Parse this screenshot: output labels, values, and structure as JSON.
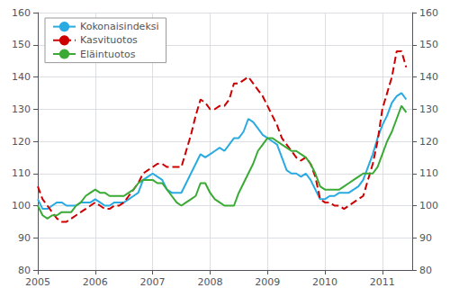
{
  "chart_data": {
    "type": "line",
    "x": [
      2005,
      2005.0833333333333,
      2005.1666666666667,
      2005.25,
      2005.3333333333333,
      2005.4166666666667,
      2005.5,
      2005.5833333333333,
      2005.6666666666667,
      2005.75,
      2005.8333333333333,
      2005.9166666666667,
      2006,
      2006.0833333333333,
      2006.1666666666667,
      2006.25,
      2006.3333333333333,
      2006.4166666666667,
      2006.5,
      2006.5833333333333,
      2006.6666666666667,
      2006.75,
      2006.8333333333333,
      2006.9166666666667,
      2007,
      2007.0833333333333,
      2007.1666666666667,
      2007.25,
      2007.3333333333333,
      2007.4166666666667,
      2007.5,
      2007.5833333333333,
      2007.6666666666667,
      2007.75,
      2007.8333333333333,
      2007.9166666666667,
      2008,
      2008.0833333333333,
      2008.1666666666667,
      2008.25,
      2008.3333333333333,
      2008.4166666666667,
      2008.5,
      2008.5833333333333,
      2008.6666666666667,
      2008.75,
      2008.8333333333333,
      2008.9166666666667,
      2009,
      2009.0833333333333,
      2009.1666666666667,
      2009.25,
      2009.3333333333333,
      2009.4166666666667,
      2009.5,
      2009.5833333333333,
      2009.6666666666667,
      2009.75,
      2009.8333333333333,
      2009.9166666666667,
      2010,
      2010.0833333333333,
      2010.1666666666667,
      2010.25,
      2010.3333333333333,
      2010.4166666666667,
      2010.5,
      2010.5833333333333,
      2010.6666666666667,
      2010.75,
      2010.8333333333333,
      2010.9166666666667,
      2011,
      2011.0833333333333,
      2011.1666666666667,
      2011.25,
      2011.3333333333333,
      2011.4166666666667
    ],
    "series": [
      {
        "name": "Kokonaisindeksi",
        "color": "#29abe2",
        "line_style": "solid",
        "values": [
          102,
          99,
          99,
          100,
          101,
          101,
          100,
          100,
          100,
          101,
          101,
          101,
          102,
          101,
          100,
          100,
          101,
          101,
          101,
          102,
          103,
          104,
          108,
          109,
          110,
          109,
          108,
          105,
          104,
          104,
          104,
          107,
          110,
          113,
          116,
          115,
          116,
          117,
          118,
          117,
          119,
          121,
          121,
          123,
          127,
          126,
          124,
          122,
          121,
          120,
          119,
          115,
          111,
          110,
          110,
          109,
          110,
          108,
          105,
          102,
          102,
          103,
          103,
          104,
          104,
          104,
          105,
          106,
          108,
          112,
          116,
          121,
          125,
          128,
          132,
          134,
          135,
          133
        ]
      },
      {
        "name": "Kasvituotos",
        "color": "#cc0000",
        "line_style": "dashed",
        "values": [
          106,
          102,
          100,
          98,
          96,
          95,
          95,
          96,
          97,
          98,
          99,
          100,
          101,
          100,
          99,
          99,
          100,
          100,
          101,
          103,
          105,
          107,
          110,
          111,
          112,
          113,
          113,
          112,
          112,
          112,
          112,
          117,
          122,
          128,
          133,
          132,
          130,
          130,
          131,
          131,
          133,
          138,
          138,
          139,
          140,
          138,
          136,
          134,
          131,
          128,
          125,
          121,
          119,
          117,
          115,
          114,
          115,
          113,
          109,
          102,
          101,
          101,
          100,
          100,
          99,
          100,
          101,
          102,
          103,
          108,
          113,
          120,
          130,
          135,
          140,
          148,
          148,
          143
        ]
      },
      {
        "name": "Eläintuotos",
        "color": "#3aaa35",
        "line_style": "solid",
        "values": [
          100,
          97,
          96,
          97,
          97,
          98,
          98,
          98,
          100,
          101,
          103,
          104,
          105,
          104,
          104,
          103,
          103,
          103,
          103,
          104,
          105,
          107,
          108,
          108,
          108,
          107,
          107,
          105,
          103,
          101,
          100,
          101,
          102,
          103,
          107,
          107,
          104,
          102,
          101,
          100,
          100,
          100,
          104,
          107,
          110,
          113,
          117,
          119,
          121,
          121,
          120,
          119,
          118,
          117,
          117,
          116,
          115,
          113,
          110,
          106,
          105,
          105,
          105,
          105,
          106,
          107,
          108,
          109,
          110,
          110,
          110,
          112,
          116,
          120,
          123,
          127,
          131,
          129
        ]
      }
    ],
    "xlim": [
      2005,
      2011.52
    ],
    "xticks": [
      2005,
      2006,
      2007,
      2008,
      2009,
      2010,
      2011
    ],
    "ylim": [
      80,
      160
    ],
    "yticks": [
      80,
      90,
      100,
      110,
      120,
      130,
      140,
      150,
      160
    ],
    "y2lim": [
      80,
      160
    ],
    "y2ticks": [
      80,
      90,
      100,
      110,
      120,
      130,
      140,
      150,
      160
    ],
    "grid": true,
    "legend": "upper left"
  }
}
